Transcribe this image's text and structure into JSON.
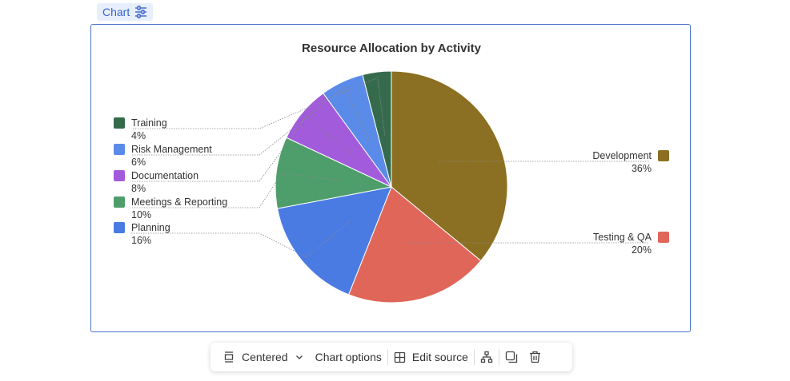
{
  "header": {
    "tag_label": "Chart",
    "tag_icon": "sliders-icon"
  },
  "chart_data": {
    "type": "pie",
    "title": "Resource Allocation by Activity",
    "slices": [
      {
        "label": "Development",
        "value": 36,
        "pct_label": "36%",
        "color": "#8b6f22"
      },
      {
        "label": "Testing & QA",
        "value": 20,
        "pct_label": "20%",
        "color": "#e0665a"
      },
      {
        "label": "Planning",
        "value": 16,
        "pct_label": "16%",
        "color": "#4a7be3"
      },
      {
        "label": "Meetings & Reporting",
        "value": 10,
        "pct_label": "10%",
        "color": "#4e9e6b"
      },
      {
        "label": "Documentation",
        "value": 8,
        "pct_label": "8%",
        "color": "#a15bdb"
      },
      {
        "label": "Risk Management",
        "value": 6,
        "pct_label": "6%",
        "color": "#5b8be8"
      },
      {
        "label": "Training",
        "value": 4,
        "pct_label": "4%",
        "color": "#356b4d"
      }
    ],
    "start_angle": "12 o'clock",
    "direction": "clockwise",
    "legend": "outside labels with leader lines"
  },
  "toolbar": {
    "centered_label": "Centered",
    "centered_icon": "align-center-icon",
    "chevron_icon": "chevron-down-icon",
    "chart_options_label": "Chart options",
    "edit_source_label": "Edit source",
    "edit_source_icon": "table-icon",
    "hierarchy_icon": "hierarchy-icon",
    "copy_icon": "copy-icon",
    "delete_icon": "trash-icon"
  }
}
